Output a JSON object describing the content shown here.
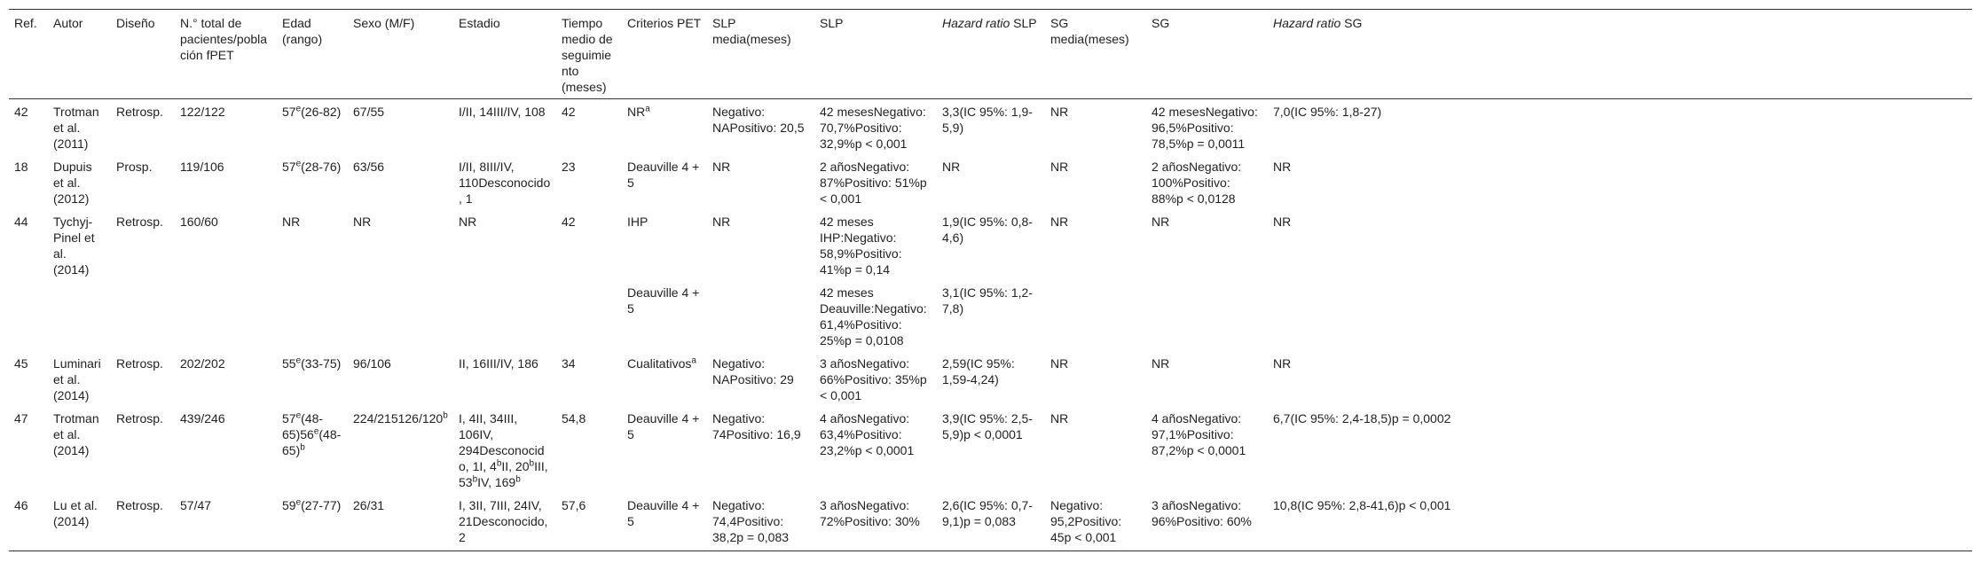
{
  "table": {
    "header": [
      "Ref.",
      "Autor",
      "Diseño",
      "N.° total de pacientes/población fPET",
      "Edad (rango)",
      "Sexo (M/F)",
      "Estadio",
      "Tiempo medio de seguimiento (meses)",
      "Criterios PET",
      "SLP media(meses)",
      "SLP",
      [
        {
          "italic": "Hazard ratio"
        },
        " SLP"
      ],
      "SG media(meses)",
      "SG",
      [
        {
          "italic": "Hazard ratio"
        },
        " SG"
      ]
    ],
    "rows": [
      {
        "cells": [
          "42",
          "Trotman et al. (2011)",
          "Retrosp.",
          "122/122",
          [
            "57",
            {
              "sup": "e"
            },
            "(26-82)"
          ],
          "67/55",
          "I/II, 14III/IV, 108",
          "42",
          [
            "NR",
            {
              "sup": "a"
            }
          ],
          "Negativo: NAPositivo: 20,5",
          "42 mesesNegativo: 70,7%Positivo: 32,9%p < 0,001",
          "3,3(IC 95%: 1,9-5,9)",
          "NR",
          "42 mesesNegativo: 96,5%Positivo: 78,5%p = 0,0011",
          "7,0(IC 95%: 1,8-27)"
        ]
      },
      {
        "cells": [
          "18",
          "Dupuis et al. (2012)",
          "Prosp.",
          "119/106",
          [
            "57",
            {
              "sup": "e"
            },
            "(28-76)"
          ],
          "63/56",
          "I/II, 8III/IV, 110Desconocido, 1",
          "23",
          "Deauville 4 + 5",
          "NR",
          "2 añosNegativo: 87%Positivo: 51%p < 0,001",
          "NR",
          "NR",
          "2 añosNegativo: 100%Positivo: 88%p < 0,0128",
          "NR"
        ]
      },
      {
        "cells": [
          "44",
          "Tychyj-Pinel et al. (2014)",
          "Retrosp.",
          "160/60",
          "NR",
          "NR",
          "NR",
          "42",
          "IHP",
          "NR",
          "42 meses IHP:Negativo: 58,9%Positivo: 41%p = 0,14",
          "1,9(IC 95%: 0,8-4,6)",
          "NR",
          "NR",
          "NR"
        ],
        "extra": {
          "criterios_pet": "Deauville 4 + 5",
          "slp": "42 meses Deauville:Negativo: 61,4%Positivo: 25%p = 0,0108",
          "hazard_ratio_slp": "3,1(IC 95%: 1,2-7,8)"
        }
      },
      {
        "cells": [
          "45",
          "Luminari et al. (2014)",
          "Retrosp.",
          "202/202",
          [
            "55",
            {
              "sup": "e"
            },
            "(33-75)"
          ],
          "96/106",
          "II, 16III/IV, 186",
          "34",
          [
            "Cualitativos",
            {
              "sup": "a"
            }
          ],
          "Negativo: NAPositivo: 29",
          "3 añosNegativo: 66%Positivo: 35%p < 0,001",
          "2,59(IC 95%: 1,59-4,24)",
          "NR",
          "NR",
          "NR"
        ]
      },
      {
        "cells": [
          "47",
          "Trotman et al. (2014)",
          "Retrosp.",
          "439/246",
          [
            "57",
            {
              "sup": "e"
            },
            "(48-65)56",
            {
              "sup": "e"
            },
            "(48-65)",
            {
              "sup": "b"
            }
          ],
          [
            "224/215126/120",
            {
              "sup": "b"
            }
          ],
          [
            "I, 4II, 34III, 106IV, 294Desconocido, 1I, 4",
            {
              "sup": "b"
            },
            "II, 20",
            {
              "sup": "b"
            },
            "III, 53",
            {
              "sup": "b"
            },
            "IV, 169",
            {
              "sup": "b"
            }
          ],
          "54,8",
          "Deauville 4 + 5",
          "Negativo: 74Positivo: 16,9",
          "4 añosNegativo: 63,4%Positivo: 23,2%p < 0,0001",
          "3,9(IC 95%: 2,5-5,9)p < 0,0001",
          "NR",
          "4 añosNegativo: 97,1%Positivo: 87,2%p < 0,0001",
          "6,7(IC 95%: 2,4-18,5)p = 0,0002"
        ]
      },
      {
        "cells": [
          "46",
          "Lu et al. (2014)",
          "Retrosp.",
          "57/47",
          [
            "59",
            {
              "sup": "e"
            },
            "(27-77)"
          ],
          "26/31",
          "I, 3II, 7III, 24IV, 21Desconocido, 2",
          "57,6",
          "Deauville 4 + 5",
          "Negativo: 74,4Positivo: 38,2p = 0,083",
          "3 añosNegativo: 72%Positivo: 30%",
          "2,6(IC 95%: 0,7-9,1)p = 0,083",
          "Negativo: 95,2Positivo: 45p < 0,001",
          "3 añosNegativo: 96%Positivo: 60%",
          "10,8(IC 95%: 2,8-41,6)p < 0,001"
        ]
      }
    ]
  }
}
